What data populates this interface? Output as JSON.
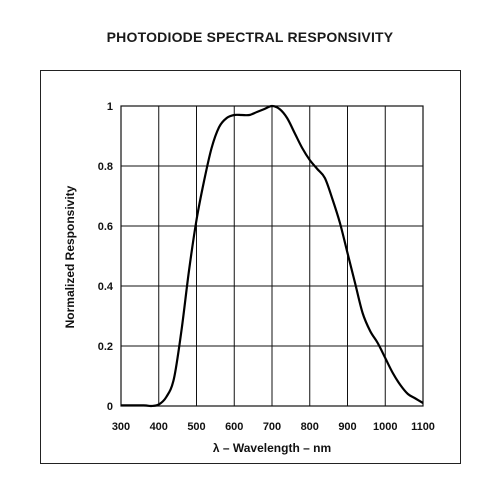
{
  "chart_data": {
    "type": "line",
    "title": "PHOTODIODE SPECTRAL RESPONSIVITY",
    "xlabel": "λ – Wavelength – nm",
    "ylabel": "Normalized Responsivity",
    "xlim": [
      300,
      1100
    ],
    "ylim": [
      0,
      1
    ],
    "xticks": [
      300,
      400,
      500,
      600,
      700,
      800,
      900,
      1000,
      1100
    ],
    "yticks": [
      "0",
      "0.2",
      "0.4",
      "0.6",
      "0.8",
      "1"
    ],
    "grid": true,
    "series": [
      {
        "x": [
          300,
          360,
          380,
          400,
          420,
          440,
          460,
          480,
          500,
          520,
          540,
          560,
          580,
          600,
          620,
          640,
          660,
          680,
          700,
          720,
          740,
          760,
          780,
          800,
          820,
          840,
          860,
          880,
          900,
          920,
          940,
          960,
          980,
          1000,
          1020,
          1040,
          1060,
          1080,
          1100
        ],
        "y": [
          0.002,
          0.002,
          0.0,
          0.005,
          0.03,
          0.09,
          0.25,
          0.45,
          0.62,
          0.75,
          0.86,
          0.93,
          0.96,
          0.97,
          0.97,
          0.97,
          0.98,
          0.99,
          1.0,
          0.99,
          0.96,
          0.91,
          0.86,
          0.82,
          0.79,
          0.76,
          0.69,
          0.61,
          0.51,
          0.41,
          0.31,
          0.25,
          0.21,
          0.16,
          0.11,
          0.07,
          0.04,
          0.025,
          0.01
        ],
        "color": "#000000"
      }
    ]
  }
}
